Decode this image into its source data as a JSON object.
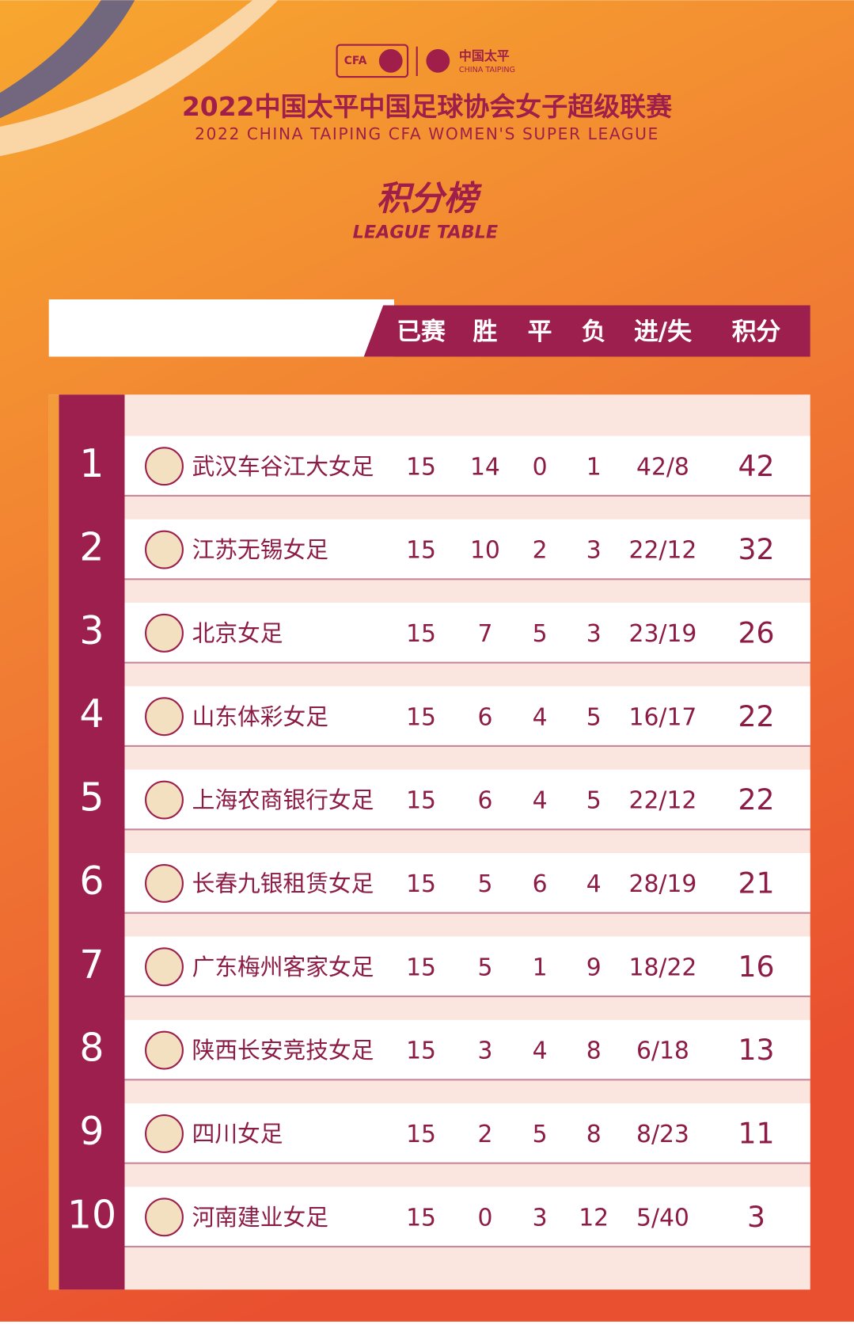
{
  "header": {
    "logo_left": "CFA",
    "logo_right_cn": "中国太平",
    "logo_right_en": "CHINA TAIPING",
    "title_cn": "2022中国太平中国足球协会女子超级联赛",
    "title_en": "2022 CHINA TAIPING CFA WOMEN'S SUPER LEAGUE",
    "subtitle_cn": "积分榜",
    "subtitle_en": "LEAGUE TABLE"
  },
  "table": {
    "columns": [
      "已赛",
      "胜",
      "平",
      "负",
      "进/失",
      "积分"
    ],
    "rows": [
      [
        "1",
        "武汉车谷江大女足",
        "15",
        "14",
        "0",
        "1",
        "42/8",
        "42"
      ],
      [
        "2",
        "江苏无锡女足",
        "15",
        "10",
        "2",
        "3",
        "22/12",
        "32"
      ],
      [
        "3",
        "北京女足",
        "15",
        "7",
        "5",
        "3",
        "23/19",
        "26"
      ],
      [
        "4",
        "山东体彩女足",
        "15",
        "6",
        "4",
        "5",
        "16/17",
        "22"
      ],
      [
        "5",
        "上海农商银行女足",
        "15",
        "6",
        "4",
        "5",
        "22/12",
        "22"
      ],
      [
        "6",
        "长春九银租赁女足",
        "15",
        "5",
        "6",
        "4",
        "28/19",
        "21"
      ],
      [
        "7",
        "广东梅州客家女足",
        "15",
        "5",
        "1",
        "9",
        "18/22",
        "16"
      ],
      [
        "8",
        "陕西长安竞技女足",
        "15",
        "3",
        "4",
        "8",
        "6/18",
        "13"
      ],
      [
        "9",
        "四川女足",
        "15",
        "2",
        "5",
        "8",
        "8/23",
        "11"
      ],
      [
        "10",
        "河南建业女足",
        "15",
        "0",
        "3",
        "12",
        "5/40",
        "3"
      ]
    ]
  }
}
